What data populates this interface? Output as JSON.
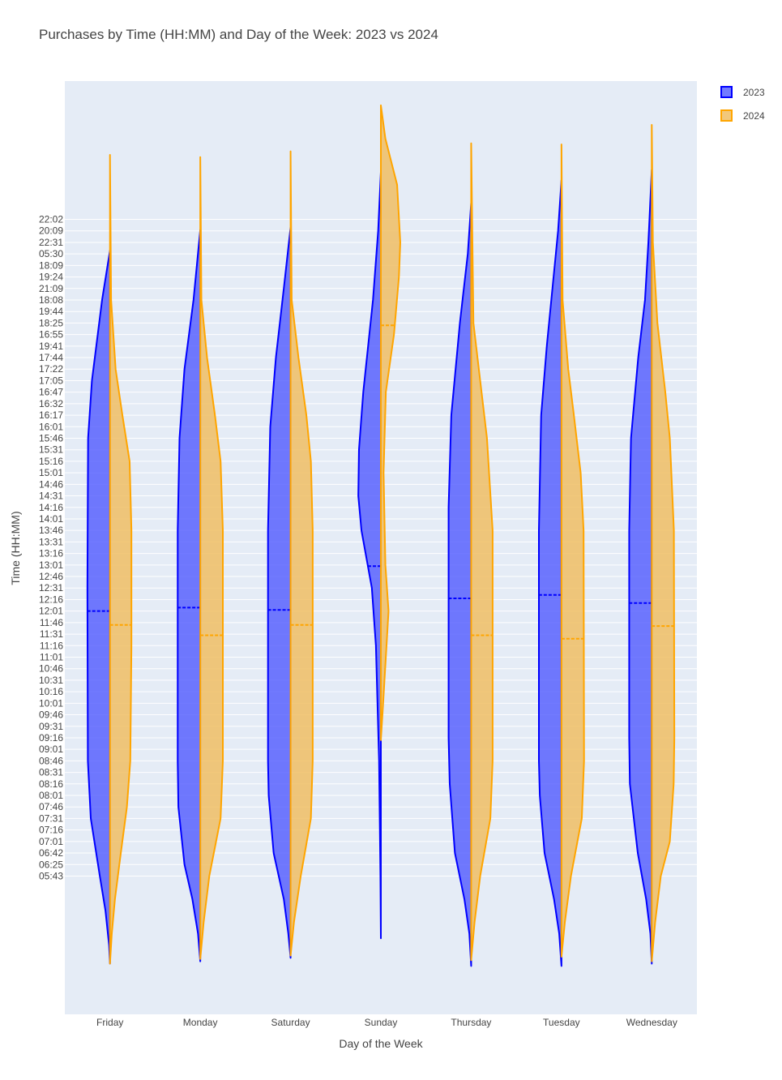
{
  "chart_data": {
    "type": "violin",
    "title": "Purchases by Time (HH:MM) and Day of the Week: 2023 vs 2024",
    "xlabel": "Day of the Week",
    "ylabel": "Time (HH:MM)",
    "categories": [
      "Friday",
      "Monday",
      "Saturday",
      "Sunday",
      "Thursday",
      "Tuesday",
      "Wednesday"
    ],
    "y_tick_labels": [
      "22:02",
      "20:09",
      "22:31",
      "05:30",
      "18:09",
      "19:24",
      "21:09",
      "18:08",
      "19:44",
      "18:25",
      "16:55",
      "19:41",
      "17:44",
      "17:22",
      "17:05",
      "16:47",
      "16:32",
      "16:17",
      "16:01",
      "15:46",
      "15:31",
      "15:16",
      "15:01",
      "14:46",
      "14:31",
      "14:16",
      "14:01",
      "13:46",
      "13:31",
      "13:16",
      "13:01",
      "12:46",
      "12:31",
      "12:16",
      "12:01",
      "11:46",
      "11:31",
      "11:16",
      "11:01",
      "10:46",
      "10:31",
      "10:16",
      "10:01",
      "09:46",
      "09:31",
      "09:16",
      "09:01",
      "08:46",
      "08:31",
      "08:16",
      "08:01",
      "07:46",
      "07:31",
      "07:16",
      "07:01",
      "06:42",
      "06:25",
      "05:43"
    ],
    "y_range": [
      -12,
      69
    ],
    "legend": {
      "placement": "top-right"
    },
    "grid": true,
    "series": [
      {
        "name": "2023",
        "side": "negative",
        "color": "#0000ff",
        "fill": "rgba(80,90,255,0.8)",
        "violins": [
          {
            "category": "Friday",
            "min": -7.6,
            "max": 54.3,
            "mean": 23.0,
            "shape": [
              [
                -7.6,
                0
              ],
              [
                -6,
                0.04
              ],
              [
                -3,
                0.2
              ],
              [
                0,
                0.45
              ],
              [
                5,
                0.85
              ],
              [
                10,
                0.98
              ],
              [
                25,
                1.0
              ],
              [
                38,
                0.97
              ],
              [
                43,
                0.8
              ],
              [
                50,
                0.35
              ],
              [
                54.3,
                0
              ]
            ]
          },
          {
            "category": "Monday",
            "min": -7.4,
            "max": 56.1,
            "mean": 23.3,
            "shape": [
              [
                -7.4,
                0
              ],
              [
                -5,
                0.1
              ],
              [
                -2,
                0.35
              ],
              [
                1,
                0.7
              ],
              [
                6,
                0.97
              ],
              [
                10,
                1.0
              ],
              [
                30,
                1.0
              ],
              [
                38,
                0.92
              ],
              [
                44,
                0.7
              ],
              [
                50,
                0.3
              ],
              [
                56.1,
                0
              ]
            ]
          },
          {
            "category": "Saturday",
            "min": -7.1,
            "max": 56.3,
            "mean": 23.1,
            "shape": [
              [
                -7.1,
                0
              ],
              [
                -5,
                0.1
              ],
              [
                -2,
                0.3
              ],
              [
                2,
                0.75
              ],
              [
                7,
                0.97
              ],
              [
                10,
                1.0
              ],
              [
                30,
                1.0
              ],
              [
                39,
                0.9
              ],
              [
                45,
                0.65
              ],
              [
                51,
                0.3
              ],
              [
                56.3,
                0
              ]
            ]
          },
          {
            "category": "Sunday",
            "min": -5.4,
            "max": 61.1,
            "mean": 26.9,
            "shape": [
              [
                -5.4,
                0
              ],
              [
                0,
                0.02
              ],
              [
                10,
                0.08
              ],
              [
                20,
                0.22
              ],
              [
                25,
                0.4
              ],
              [
                30,
                0.86
              ],
              [
                33,
                1.0
              ],
              [
                37,
                0.97
              ],
              [
                42,
                0.78
              ],
              [
                50,
                0.35
              ],
              [
                56,
                0.12
              ],
              [
                61.1,
                0
              ]
            ]
          },
          {
            "category": "Thursday",
            "min": -7.8,
            "max": 58.4,
            "mean": 24.1,
            "shape": [
              [
                -7.8,
                0
              ],
              [
                -5,
                0.08
              ],
              [
                -2,
                0.3
              ],
              [
                2,
                0.72
              ],
              [
                8,
                0.95
              ],
              [
                12,
                1.0
              ],
              [
                32,
                1.0
              ],
              [
                40,
                0.88
              ],
              [
                48,
                0.5
              ],
              [
                54,
                0.15
              ],
              [
                58.4,
                0
              ]
            ]
          },
          {
            "category": "Tuesday",
            "min": -7.8,
            "max": 60.4,
            "mean": 24.4,
            "shape": [
              [
                -7.8,
                0
              ],
              [
                -5,
                0.1
              ],
              [
                -2,
                0.33
              ],
              [
                2,
                0.75
              ],
              [
                7,
                0.96
              ],
              [
                10,
                1.0
              ],
              [
                30,
                1.0
              ],
              [
                40,
                0.9
              ],
              [
                46,
                0.65
              ],
              [
                52,
                0.35
              ],
              [
                56,
                0.15
              ],
              [
                60.4,
                0
              ]
            ]
          },
          {
            "category": "Wednesday",
            "min": -7.6,
            "max": 61.3,
            "mean": 23.7,
            "shape": [
              [
                -7.6,
                0
              ],
              [
                -5,
                0.06
              ],
              [
                -2,
                0.25
              ],
              [
                2,
                0.62
              ],
              [
                8,
                0.97
              ],
              [
                12,
                1.0
              ],
              [
                30,
                1.0
              ],
              [
                38,
                0.92
              ],
              [
                45,
                0.6
              ],
              [
                50,
                0.3
              ],
              [
                55,
                0.15
              ],
              [
                61.3,
                0
              ]
            ]
          }
        ]
      },
      {
        "name": "2024",
        "side": "positive",
        "color": "#ffa500",
        "fill": "rgba(240,190,100,0.85)",
        "violins": [
          {
            "category": "Friday",
            "min": -7.6,
            "max": 62.6,
            "mean": 21.8,
            "shape": [
              [
                -7.6,
                0
              ],
              [
                -5,
                0.08
              ],
              [
                -2,
                0.22
              ],
              [
                2,
                0.48
              ],
              [
                6,
                0.75
              ],
              [
                10,
                0.9
              ],
              [
                20,
                0.95
              ],
              [
                30,
                0.95
              ],
              [
                36,
                0.87
              ],
              [
                40,
                0.55
              ],
              [
                44,
                0.25
              ],
              [
                50,
                0.05
              ],
              [
                62.6,
                0
              ]
            ]
          },
          {
            "category": "Monday",
            "min": -7.2,
            "max": 62.4,
            "mean": 20.9,
            "shape": [
              [
                -7.2,
                0
              ],
              [
                -4,
                0.15
              ],
              [
                0,
                0.4
              ],
              [
                5,
                0.9
              ],
              [
                10,
                1.0
              ],
              [
                30,
                1.0
              ],
              [
                36,
                0.9
              ],
              [
                40,
                0.65
              ],
              [
                45,
                0.3
              ],
              [
                50,
                0.05
              ],
              [
                62.4,
                0
              ]
            ]
          },
          {
            "category": "Saturday",
            "min": -6.9,
            "max": 62.9,
            "mean": 21.8,
            "shape": [
              [
                -6.9,
                0
              ],
              [
                -4,
                0.15
              ],
              [
                0,
                0.45
              ],
              [
                5,
                0.9
              ],
              [
                10,
                0.98
              ],
              [
                30,
                0.98
              ],
              [
                36,
                0.9
              ],
              [
                40,
                0.7
              ],
              [
                45,
                0.35
              ],
              [
                50,
                0.05
              ],
              [
                62.9,
                0
              ]
            ]
          },
          {
            "category": "Sunday",
            "min": 11.8,
            "max": 66.9,
            "mean": 47.8,
            "shape": [
              [
                11.8,
                0
              ],
              [
                15,
                0.1
              ],
              [
                20,
                0.25
              ],
              [
                23,
                0.34
              ],
              [
                27,
                0.2
              ],
              [
                35,
                0.12
              ],
              [
                42,
                0.22
              ],
              [
                47,
                0.58
              ],
              [
                52,
                0.8
              ],
              [
                55,
                0.86
              ],
              [
                60,
                0.72
              ],
              [
                64,
                0.2
              ],
              [
                66.9,
                0
              ]
            ]
          },
          {
            "category": "Thursday",
            "min": -7.3,
            "max": 63.6,
            "mean": 20.9,
            "shape": [
              [
                -7.3,
                0
              ],
              [
                -4,
                0.15
              ],
              [
                0,
                0.4
              ],
              [
                5,
                0.85
              ],
              [
                10,
                0.95
              ],
              [
                30,
                0.95
              ],
              [
                38,
                0.7
              ],
              [
                43,
                0.4
              ],
              [
                48,
                0.1
              ],
              [
                63.6,
                0
              ]
            ]
          },
          {
            "category": "Tuesday",
            "min": -7.0,
            "max": 63.5,
            "mean": 20.6,
            "shape": [
              [
                -7.0,
                0
              ],
              [
                -4,
                0.15
              ],
              [
                0,
                0.42
              ],
              [
                5,
                0.9
              ],
              [
                10,
                1.0
              ],
              [
                30,
                0.98
              ],
              [
                35,
                0.85
              ],
              [
                40,
                0.55
              ],
              [
                44,
                0.3
              ],
              [
                50,
                0.05
              ],
              [
                63.5,
                0
              ]
            ]
          },
          {
            "category": "Wednesday",
            "min": -7.4,
            "max": 65.2,
            "mean": 21.7,
            "shape": [
              [
                -7.4,
                0
              ],
              [
                -4,
                0.15
              ],
              [
                0,
                0.4
              ],
              [
                3,
                0.8
              ],
              [
                8,
                0.97
              ],
              [
                12,
                1.0
              ],
              [
                30,
                0.98
              ],
              [
                38,
                0.8
              ],
              [
                42,
                0.6
              ],
              [
                48,
                0.25
              ],
              [
                55,
                0.05
              ],
              [
                65.2,
                0
              ]
            ]
          }
        ]
      }
    ]
  }
}
